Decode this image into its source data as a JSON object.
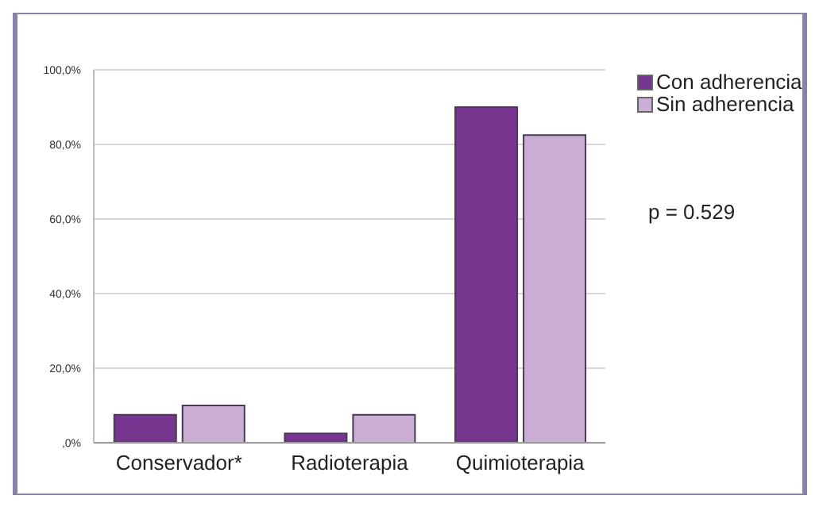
{
  "chart_data": {
    "type": "bar",
    "categories": [
      "Conservador*",
      "Radioterapia",
      "Quimioterapia"
    ],
    "series": [
      {
        "name": "Con adherencia",
        "color": "#76368f",
        "values": [
          7.5,
          2.5,
          90
        ]
      },
      {
        "name": "Sin adherencia",
        "color": "#cbaed6",
        "values": [
          10,
          7.5,
          82.5
        ]
      }
    ],
    "ylim": [
      0,
      100
    ],
    "yticks": [
      {
        "value": 0,
        "label": ",0%"
      },
      {
        "value": 20,
        "label": "20,0%"
      },
      {
        "value": 40,
        "label": "40,0%"
      },
      {
        "value": 60,
        "label": "60,0%"
      },
      {
        "value": 80,
        "label": "80,0%"
      },
      {
        "value": 100,
        "label": "100,0%"
      }
    ],
    "grid": "y",
    "legend": "top right",
    "annotations": [
      "p = 0.529"
    ]
  }
}
